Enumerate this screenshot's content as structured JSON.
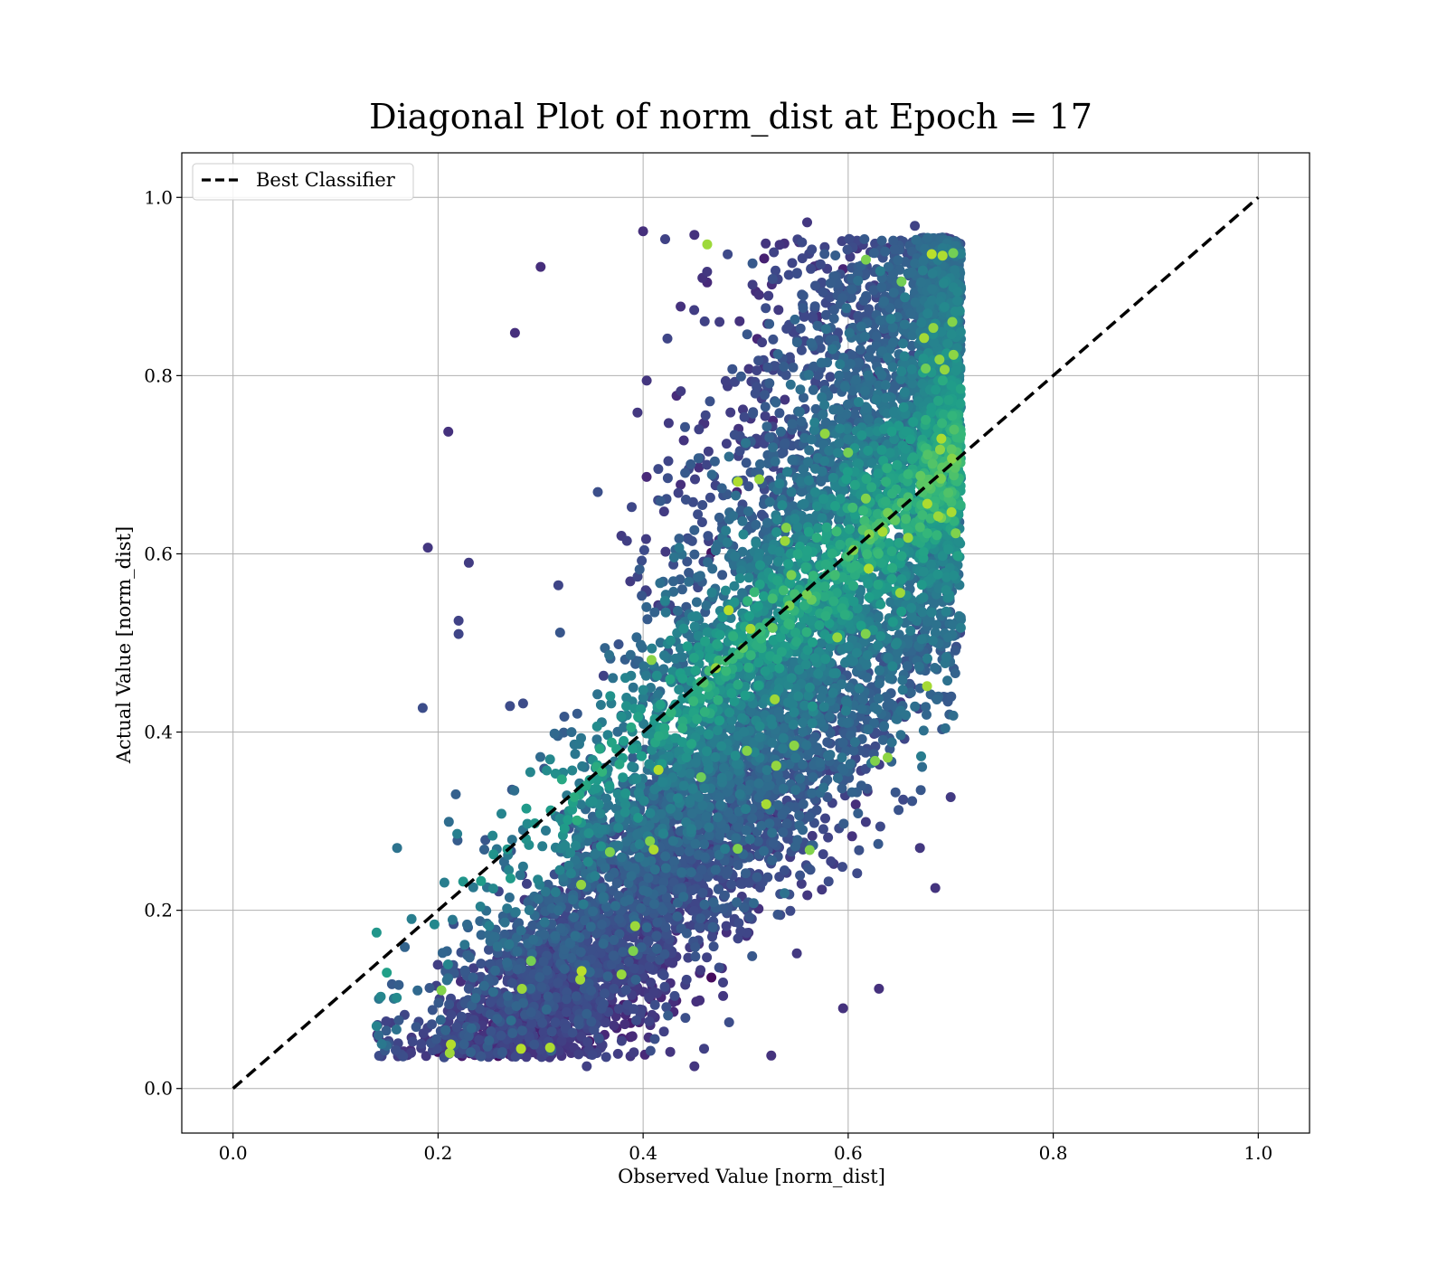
{
  "chart_data": {
    "type": "scatter",
    "title": "Diagonal Plot of norm_dist at Epoch = 17",
    "xlabel": "Observed Value [norm_dist]",
    "ylabel": "Actual Value [norm_dist]",
    "xlim": [
      -0.05,
      1.05
    ],
    "ylim": [
      -0.05,
      1.05
    ],
    "x_ticks": [
      0.0,
      0.2,
      0.4,
      0.6,
      0.8,
      1.0
    ],
    "y_ticks": [
      0.0,
      0.2,
      0.4,
      0.6,
      0.8,
      1.0
    ],
    "x_tick_labels": [
      "0.0",
      "0.2",
      "0.4",
      "0.6",
      "0.8",
      "1.0"
    ],
    "y_tick_labels": [
      "0.0",
      "0.2",
      "0.4",
      "0.6",
      "0.8",
      "1.0"
    ],
    "grid": true,
    "legend": {
      "location": "top-left",
      "entries": [
        "Best Classifier"
      ]
    },
    "colormap": "viridis",
    "point_cloud": {
      "description": "dense cloud of predictions colored by viridis colormap",
      "observed_range": [
        0.14,
        0.71
      ],
      "actual_range": [
        0.02,
        0.97
      ],
      "samples": [
        {
          "x": 0.14,
          "y": 0.07
        },
        {
          "x": 0.145,
          "y": 0.05
        },
        {
          "x": 0.14,
          "y": 0.175
        },
        {
          "x": 0.15,
          "y": 0.13
        },
        {
          "x": 0.16,
          "y": 0.27
        },
        {
          "x": 0.19,
          "y": 0.607
        },
        {
          "x": 0.185,
          "y": 0.427
        },
        {
          "x": 0.21,
          "y": 0.737
        },
        {
          "x": 0.23,
          "y": 0.59
        },
        {
          "x": 0.22,
          "y": 0.525
        },
        {
          "x": 0.22,
          "y": 0.51
        },
        {
          "x": 0.275,
          "y": 0.848
        },
        {
          "x": 0.3,
          "y": 0.922
        },
        {
          "x": 0.345,
          "y": 0.025
        },
        {
          "x": 0.4,
          "y": 0.962
        },
        {
          "x": 0.45,
          "y": 0.958
        },
        {
          "x": 0.56,
          "y": 0.972
        },
        {
          "x": 0.665,
          "y": 0.968
        },
        {
          "x": 0.7,
          "y": 0.835
        },
        {
          "x": 0.7,
          "y": 0.587
        },
        {
          "x": 0.7,
          "y": 0.327
        },
        {
          "x": 0.685,
          "y": 0.225
        },
        {
          "x": 0.63,
          "y": 0.112
        },
        {
          "x": 0.595,
          "y": 0.09
        },
        {
          "x": 0.525,
          "y": 0.037
        },
        {
          "x": 0.45,
          "y": 0.025
        },
        {
          "x": 0.54,
          "y": 0.242
        },
        {
          "x": 0.29,
          "y": 0.355
        },
        {
          "x": 0.56,
          "y": 0.585
        },
        {
          "x": 0.67,
          "y": 0.27
        }
      ]
    },
    "series": [
      {
        "name": "Best Classifier",
        "style": "dashed",
        "color": "#000000",
        "x": [
          0.0,
          1.0
        ],
        "y": [
          0.0,
          1.0
        ]
      }
    ]
  }
}
